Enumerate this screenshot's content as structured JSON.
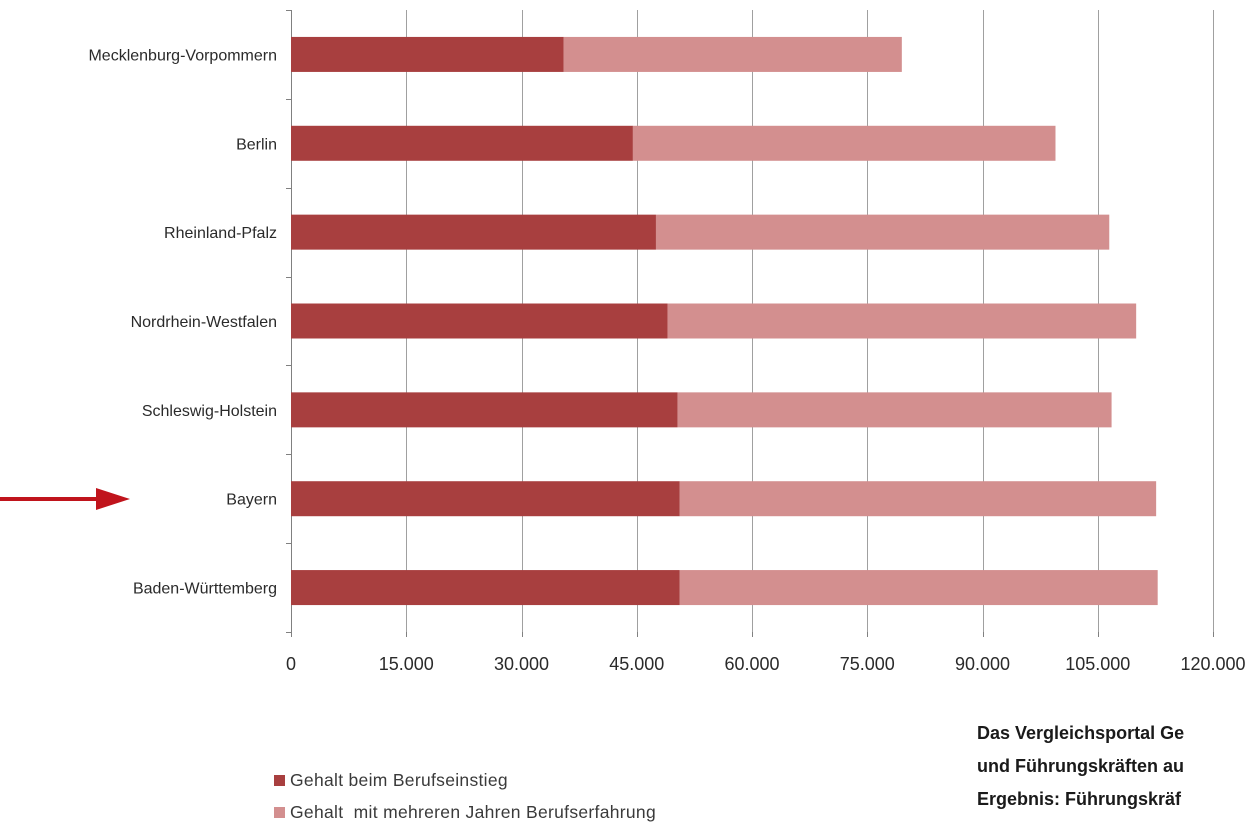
{
  "chart_data": {
    "type": "bar",
    "orientation": "horizontal",
    "stacked": true,
    "categories": [
      "Mecklenburg-Vorpommern",
      "Berlin",
      "Rheinland-Pfalz",
      "Nordrhein-Westfalen",
      "Schleswig-Holstein",
      "Bayern",
      "Baden-Württemberg"
    ],
    "series": [
      {
        "name": "Gehalt beim Berufseinstieg",
        "color": "#a83f3f",
        "values": [
          35500,
          44500,
          47500,
          49000,
          50300,
          50600,
          50600
        ]
      },
      {
        "name": "Gehalt  mit mehreren Jahren Berufserfahrung",
        "color": "#d38f8f",
        "values": [
          44000,
          55000,
          59000,
          61000,
          56500,
          62000,
          62200
        ]
      }
    ],
    "xlim": [
      0,
      120000
    ],
    "xticks": [
      "0",
      "15.000",
      "30.000",
      "45.000",
      "60.000",
      "75.000",
      "90.000",
      "105.000",
      "120.000"
    ],
    "grid": true,
    "legend_position": "bottom-left",
    "highlighted_category": "Bayern"
  },
  "side_text": [
    "Das Vergleichsportal Ge",
    "und Führungskräften au",
    "Ergebnis: Führungskräf"
  ],
  "colors": {
    "arrow": "#c0141c",
    "grid": "#a0a0a0",
    "axis": "#808080"
  }
}
